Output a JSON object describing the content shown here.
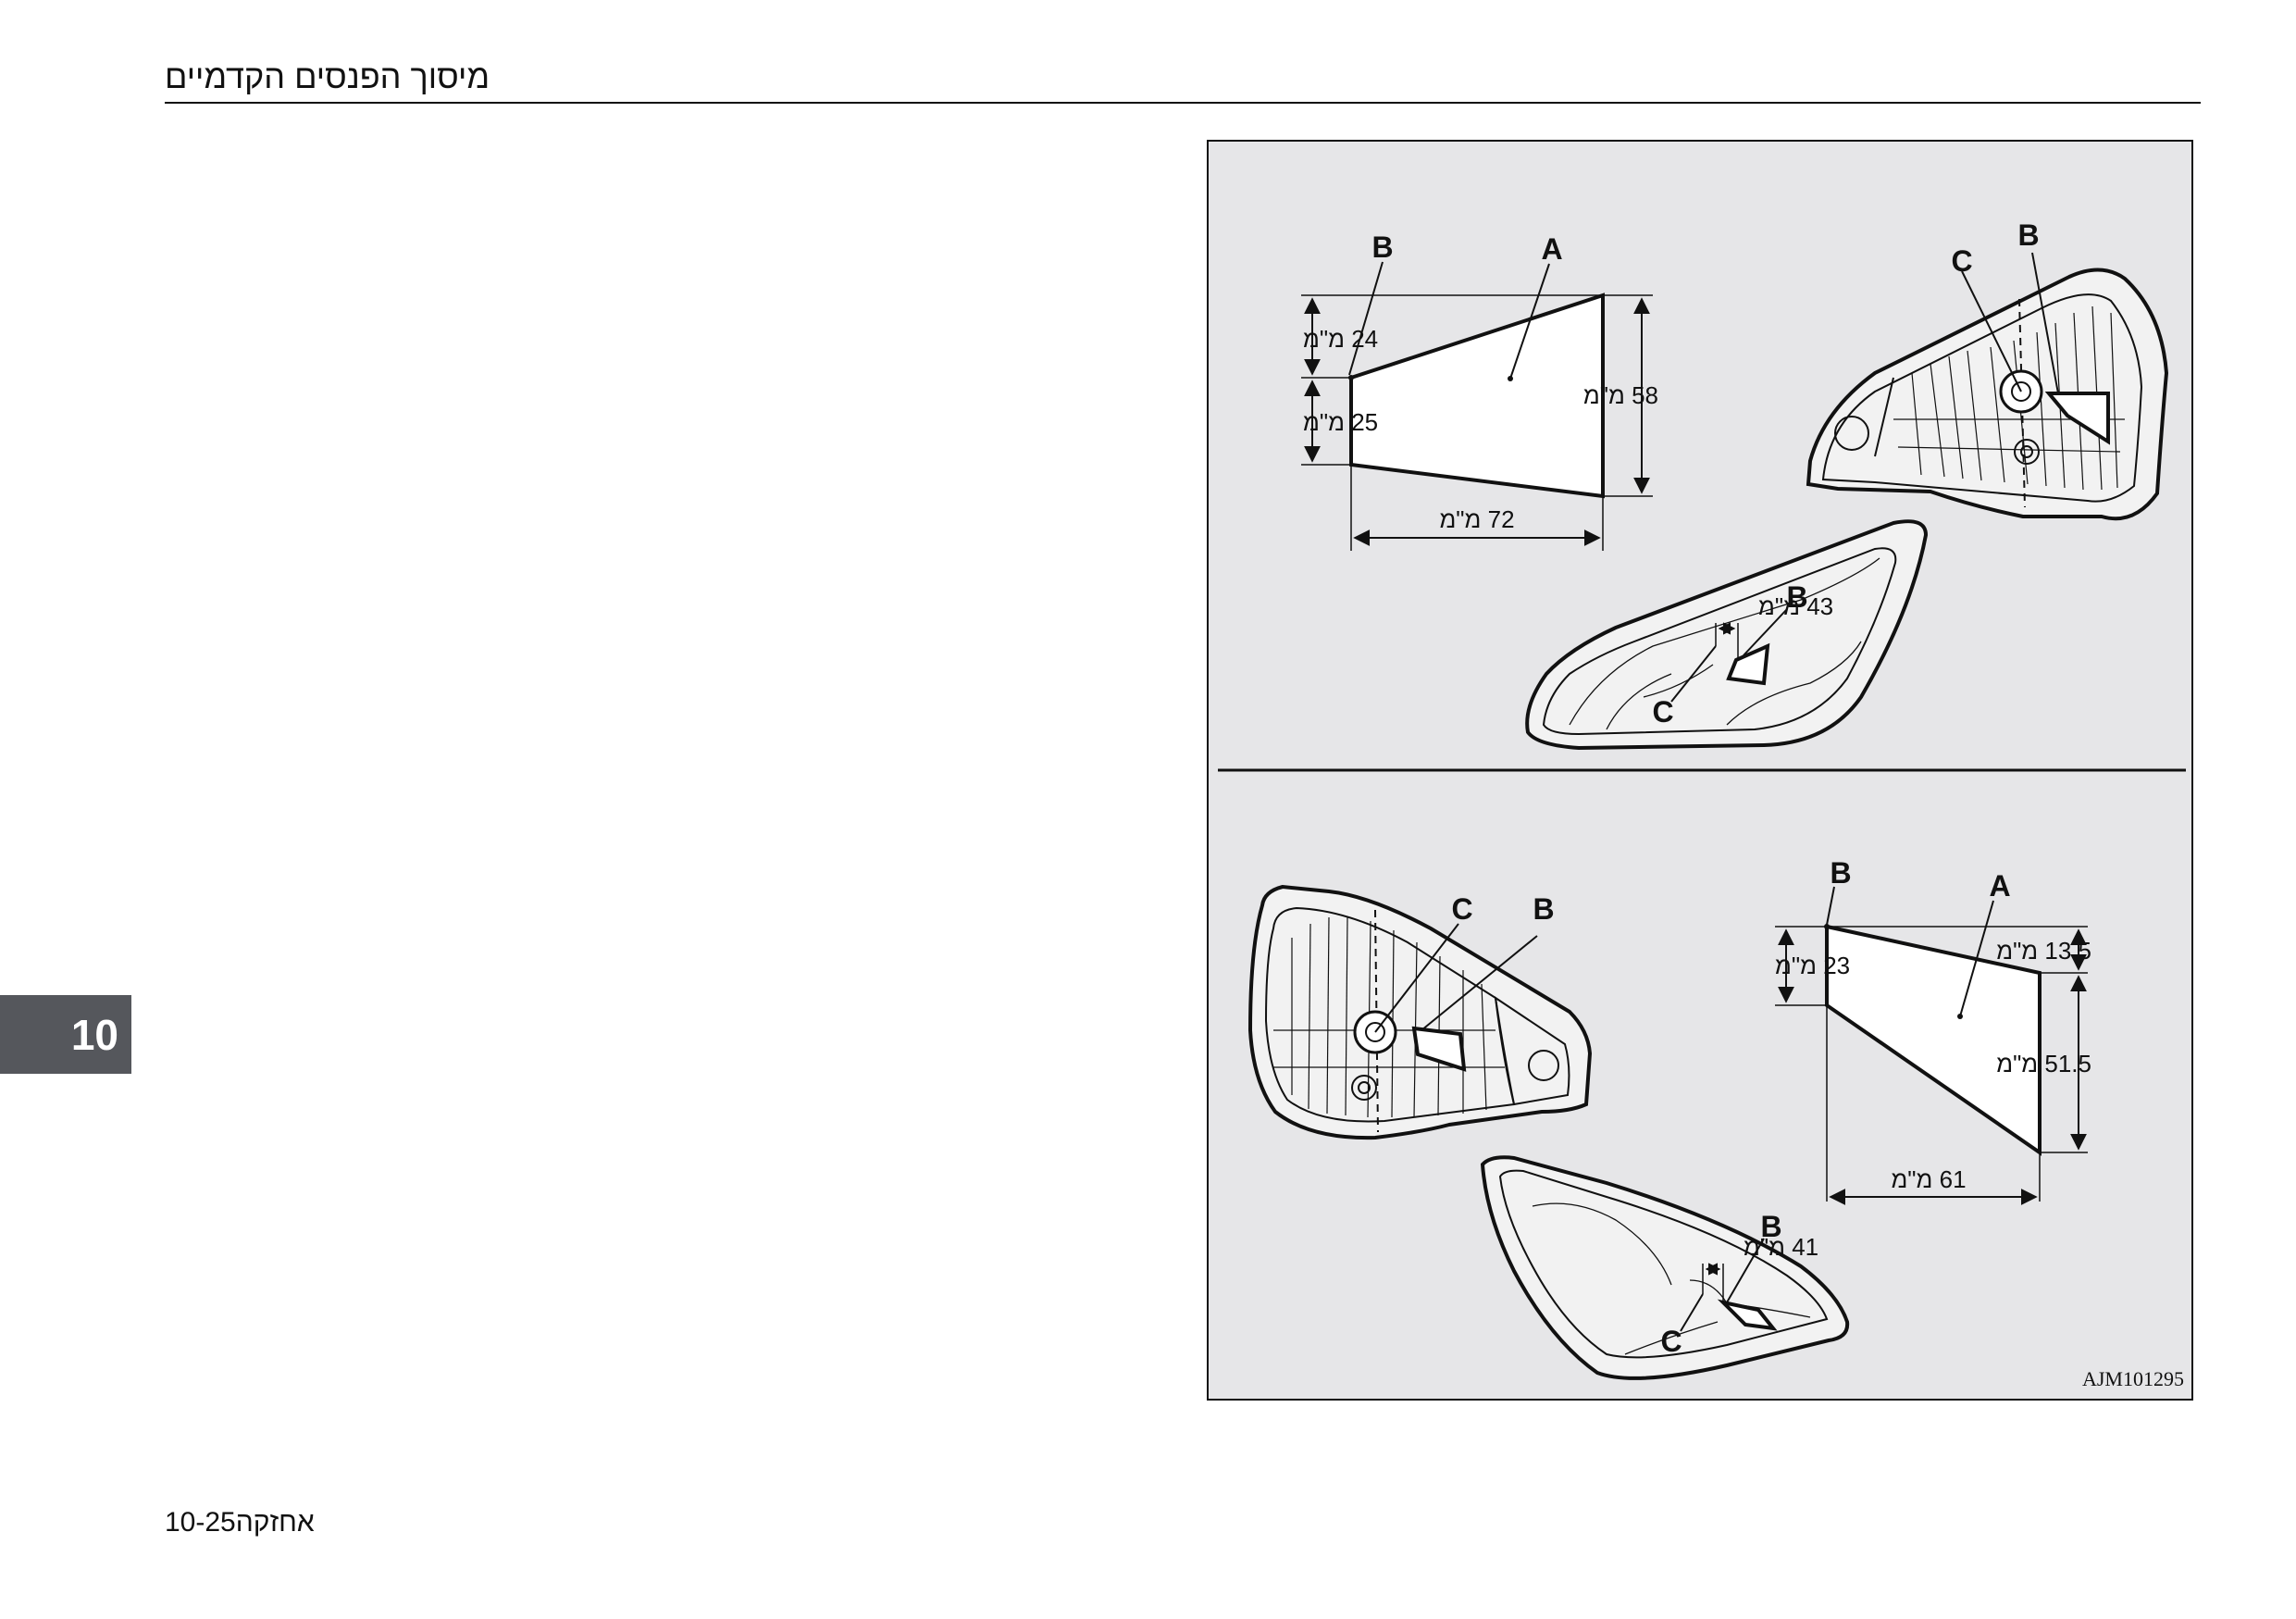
{
  "header": {
    "title": "מיסוך הפנסים הקדמיים"
  },
  "chapter_tab": {
    "number": "10"
  },
  "footer": {
    "page": "10-25",
    "section": "אחזקה"
  },
  "figure": {
    "code": "AJM101295",
    "labels": {
      "a": "A",
      "b": "B",
      "c": "C"
    },
    "top": {
      "dim_24": "24 מ\"מ",
      "dim_25": "25 מ\"מ",
      "dim_58": "58 מ\"מ",
      "dim_72": "72 מ\"מ",
      "dim_43": "43 מ\"מ"
    },
    "bottom": {
      "dim_23": "23 מ\"מ",
      "dim_13_5": "13.5 מ\"מ",
      "dim_51_5": "51.5 מ\"מ",
      "dim_61": "61 מ\"מ",
      "dim_41": "41 מ\"מ"
    }
  }
}
